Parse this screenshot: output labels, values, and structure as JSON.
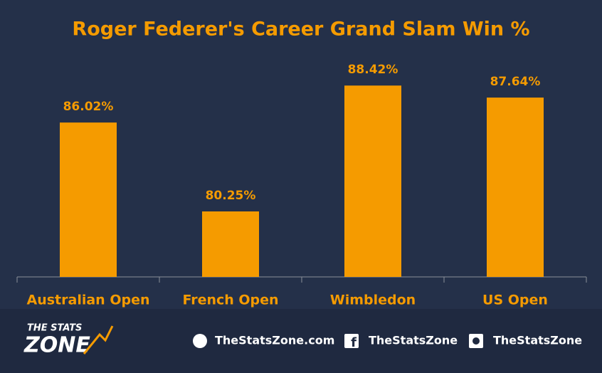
{
  "chart_data": {
    "type": "bar",
    "title": "Roger Federer's Career Grand Slam Win %",
    "categories": [
      "Australian Open",
      "French Open",
      "Wimbledon",
      "US Open"
    ],
    "values": [
      86.02,
      80.25,
      88.42,
      87.64
    ],
    "value_labels": [
      "86.02%",
      "80.25%",
      "88.42%",
      "87.64%"
    ],
    "color": "#f59b00",
    "ylim": [
      76,
      90
    ]
  },
  "footer": {
    "logo_top": "THE STATS",
    "logo_bottom": "ZONE",
    "website": "TheStatsZone.com",
    "facebook": "TheStatsZone",
    "twitter": "TheStatsZone"
  }
}
